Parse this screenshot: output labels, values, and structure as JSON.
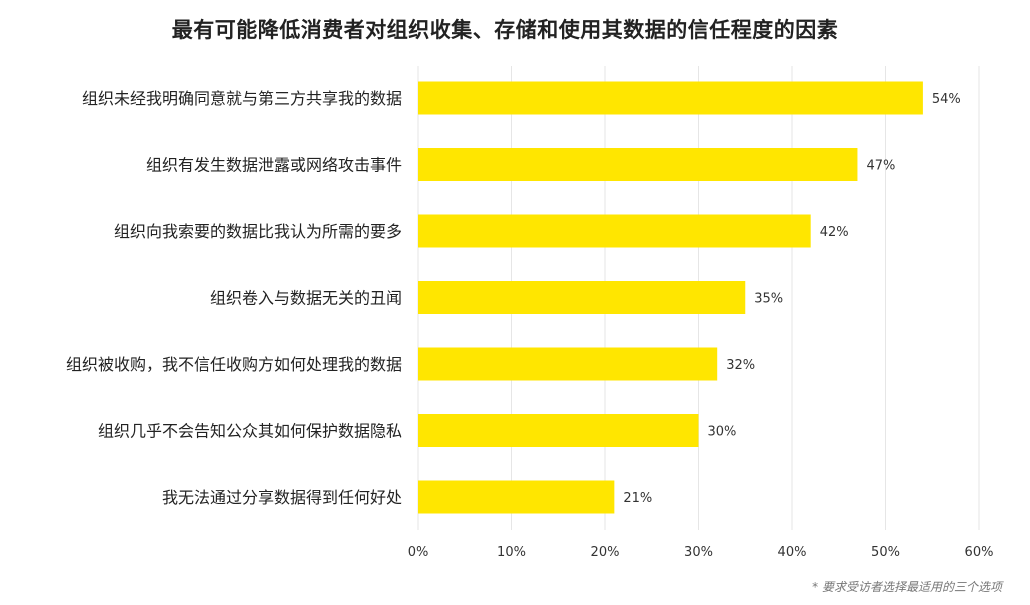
{
  "chart_data": {
    "type": "bar",
    "orientation": "horizontal",
    "title": "最有可能降低消费者对组织收集、存储和使用其数据的信任程度的因素",
    "categories": [
      "组织未经我明确同意就与第三方共享我的数据",
      "组织有发生数据泄露或网络攻击事件",
      "组织向我索要的数据比我认为所需的要多",
      "组织卷入与数据无关的丑闻",
      "组织被收购，我不信任收购方如何处理我的数据",
      "组织几乎不会告知公众其如何保护数据隐私",
      "我无法通过分享数据得到任何好处"
    ],
    "values": [
      54,
      47,
      42,
      35,
      32,
      30,
      21
    ],
    "value_labels": [
      "54%",
      "47%",
      "42%",
      "35%",
      "32%",
      "30%",
      "21%"
    ],
    "xlim": [
      0,
      60
    ],
    "x_ticks": [
      0,
      10,
      20,
      30,
      40,
      50,
      60
    ],
    "x_tick_labels": [
      "0%",
      "10%",
      "20%",
      "30%",
      "40%",
      "50%",
      "60%"
    ],
    "xlabel": "",
    "ylabel": "",
    "grid": "vertical",
    "bar_color": "#FFE600",
    "gridline_color": "#e6e6e6"
  },
  "footnote": "* 要求受访者选择最适用的三个选项"
}
